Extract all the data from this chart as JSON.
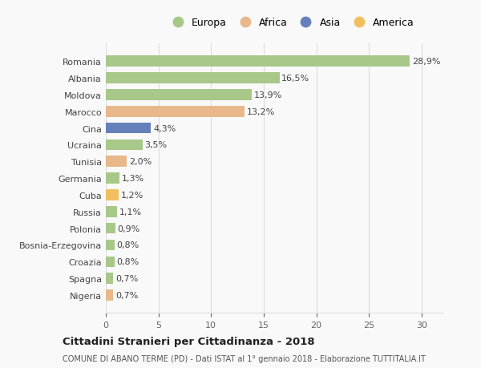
{
  "countries": [
    "Nigeria",
    "Spagna",
    "Croazia",
    "Bosnia-Erzegovina",
    "Polonia",
    "Russia",
    "Cuba",
    "Germania",
    "Tunisia",
    "Ucraina",
    "Cina",
    "Marocco",
    "Moldova",
    "Albania",
    "Romania"
  ],
  "values": [
    0.7,
    0.7,
    0.8,
    0.8,
    0.9,
    1.1,
    1.2,
    1.3,
    2.0,
    3.5,
    4.3,
    13.2,
    13.9,
    16.5,
    28.9
  ],
  "labels": [
    "0,7%",
    "0,7%",
    "0,8%",
    "0,8%",
    "0,9%",
    "1,1%",
    "1,2%",
    "1,3%",
    "2,0%",
    "3,5%",
    "4,3%",
    "13,2%",
    "13,9%",
    "16,5%",
    "28,9%"
  ],
  "continent": [
    "Africa",
    "Europa",
    "Europa",
    "Europa",
    "Europa",
    "Europa",
    "America",
    "Europa",
    "Africa",
    "Europa",
    "Asia",
    "Africa",
    "Europa",
    "Europa",
    "Europa"
  ],
  "colors": {
    "Europa": "#a8c88a",
    "Africa": "#e8b88a",
    "Asia": "#6680bb",
    "America": "#f0c060"
  },
  "legend_order": [
    "Europa",
    "Africa",
    "Asia",
    "America"
  ],
  "title": "Cittadini Stranieri per Cittadinanza - 2018",
  "subtitle": "COMUNE DI ABANO TERME (PD) - Dati ISTAT al 1° gennaio 2018 - Elaborazione TUTTITALIA.IT",
  "xlim": [
    0,
    32
  ],
  "xticks": [
    0,
    5,
    10,
    15,
    20,
    25,
    30
  ],
  "background_color": "#f9f9f9",
  "grid_color": "#dddddd"
}
